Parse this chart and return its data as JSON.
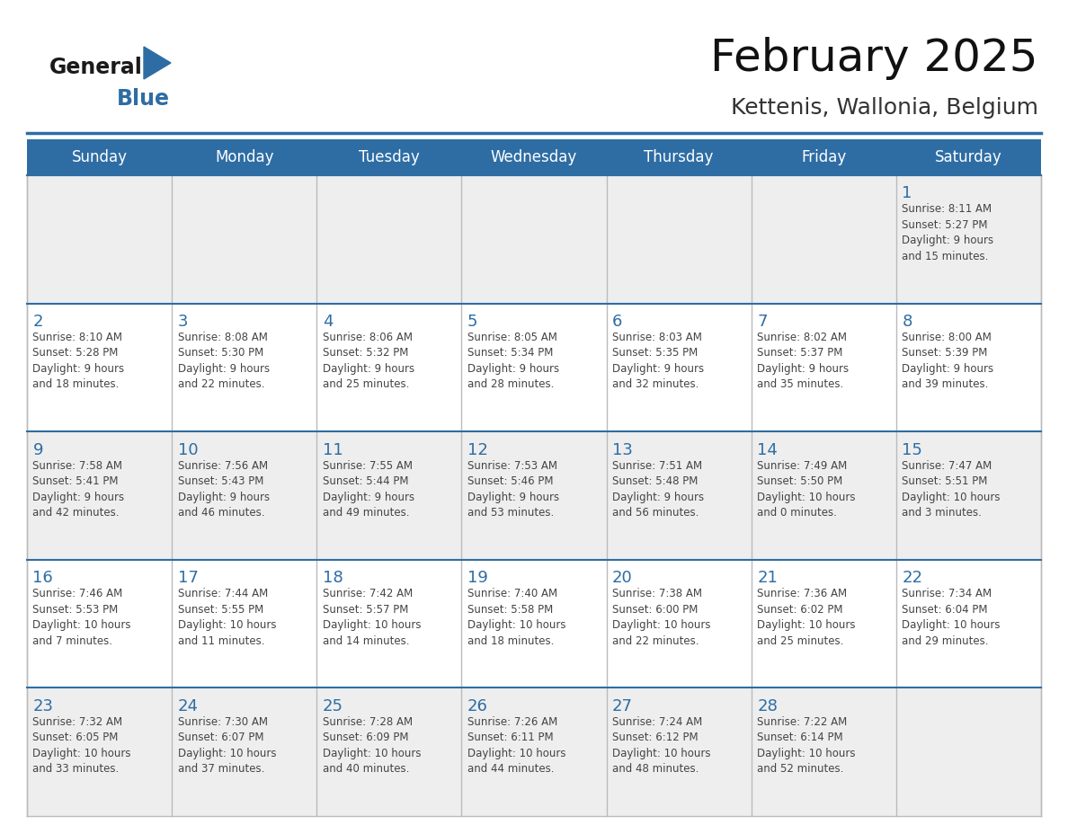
{
  "title": "February 2025",
  "subtitle": "Kettenis, Wallonia, Belgium",
  "header_bg": "#2E6DA4",
  "header_text": "#FFFFFF",
  "row1_bg": "#EEEEEE",
  "row_bg": "#FFFFFF",
  "day_number_color": "#2E6DA4",
  "detail_text_color": "#444444",
  "border_color": "#2E6DA4",
  "grid_line_color": "#BBBBBB",
  "days_of_week": [
    "Sunday",
    "Monday",
    "Tuesday",
    "Wednesday",
    "Thursday",
    "Friday",
    "Saturday"
  ],
  "weeks": [
    [
      {
        "day": null,
        "info": null
      },
      {
        "day": null,
        "info": null
      },
      {
        "day": null,
        "info": null
      },
      {
        "day": null,
        "info": null
      },
      {
        "day": null,
        "info": null
      },
      {
        "day": null,
        "info": null
      },
      {
        "day": 1,
        "info": "Sunrise: 8:11 AM\nSunset: 5:27 PM\nDaylight: 9 hours\nand 15 minutes."
      }
    ],
    [
      {
        "day": 2,
        "info": "Sunrise: 8:10 AM\nSunset: 5:28 PM\nDaylight: 9 hours\nand 18 minutes."
      },
      {
        "day": 3,
        "info": "Sunrise: 8:08 AM\nSunset: 5:30 PM\nDaylight: 9 hours\nand 22 minutes."
      },
      {
        "day": 4,
        "info": "Sunrise: 8:06 AM\nSunset: 5:32 PM\nDaylight: 9 hours\nand 25 minutes."
      },
      {
        "day": 5,
        "info": "Sunrise: 8:05 AM\nSunset: 5:34 PM\nDaylight: 9 hours\nand 28 minutes."
      },
      {
        "day": 6,
        "info": "Sunrise: 8:03 AM\nSunset: 5:35 PM\nDaylight: 9 hours\nand 32 minutes."
      },
      {
        "day": 7,
        "info": "Sunrise: 8:02 AM\nSunset: 5:37 PM\nDaylight: 9 hours\nand 35 minutes."
      },
      {
        "day": 8,
        "info": "Sunrise: 8:00 AM\nSunset: 5:39 PM\nDaylight: 9 hours\nand 39 minutes."
      }
    ],
    [
      {
        "day": 9,
        "info": "Sunrise: 7:58 AM\nSunset: 5:41 PM\nDaylight: 9 hours\nand 42 minutes."
      },
      {
        "day": 10,
        "info": "Sunrise: 7:56 AM\nSunset: 5:43 PM\nDaylight: 9 hours\nand 46 minutes."
      },
      {
        "day": 11,
        "info": "Sunrise: 7:55 AM\nSunset: 5:44 PM\nDaylight: 9 hours\nand 49 minutes."
      },
      {
        "day": 12,
        "info": "Sunrise: 7:53 AM\nSunset: 5:46 PM\nDaylight: 9 hours\nand 53 minutes."
      },
      {
        "day": 13,
        "info": "Sunrise: 7:51 AM\nSunset: 5:48 PM\nDaylight: 9 hours\nand 56 minutes."
      },
      {
        "day": 14,
        "info": "Sunrise: 7:49 AM\nSunset: 5:50 PM\nDaylight: 10 hours\nand 0 minutes."
      },
      {
        "day": 15,
        "info": "Sunrise: 7:47 AM\nSunset: 5:51 PM\nDaylight: 10 hours\nand 3 minutes."
      }
    ],
    [
      {
        "day": 16,
        "info": "Sunrise: 7:46 AM\nSunset: 5:53 PM\nDaylight: 10 hours\nand 7 minutes."
      },
      {
        "day": 17,
        "info": "Sunrise: 7:44 AM\nSunset: 5:55 PM\nDaylight: 10 hours\nand 11 minutes."
      },
      {
        "day": 18,
        "info": "Sunrise: 7:42 AM\nSunset: 5:57 PM\nDaylight: 10 hours\nand 14 minutes."
      },
      {
        "day": 19,
        "info": "Sunrise: 7:40 AM\nSunset: 5:58 PM\nDaylight: 10 hours\nand 18 minutes."
      },
      {
        "day": 20,
        "info": "Sunrise: 7:38 AM\nSunset: 6:00 PM\nDaylight: 10 hours\nand 22 minutes."
      },
      {
        "day": 21,
        "info": "Sunrise: 7:36 AM\nSunset: 6:02 PM\nDaylight: 10 hours\nand 25 minutes."
      },
      {
        "day": 22,
        "info": "Sunrise: 7:34 AM\nSunset: 6:04 PM\nDaylight: 10 hours\nand 29 minutes."
      }
    ],
    [
      {
        "day": 23,
        "info": "Sunrise: 7:32 AM\nSunset: 6:05 PM\nDaylight: 10 hours\nand 33 minutes."
      },
      {
        "day": 24,
        "info": "Sunrise: 7:30 AM\nSunset: 6:07 PM\nDaylight: 10 hours\nand 37 minutes."
      },
      {
        "day": 25,
        "info": "Sunrise: 7:28 AM\nSunset: 6:09 PM\nDaylight: 10 hours\nand 40 minutes."
      },
      {
        "day": 26,
        "info": "Sunrise: 7:26 AM\nSunset: 6:11 PM\nDaylight: 10 hours\nand 44 minutes."
      },
      {
        "day": 27,
        "info": "Sunrise: 7:24 AM\nSunset: 6:12 PM\nDaylight: 10 hours\nand 48 minutes."
      },
      {
        "day": 28,
        "info": "Sunrise: 7:22 AM\nSunset: 6:14 PM\nDaylight: 10 hours\nand 52 minutes."
      },
      {
        "day": null,
        "info": null
      }
    ]
  ],
  "logo_general_color": "#1a1a1a",
  "logo_blue_color": "#2E6DA4",
  "figsize": [
    11.88,
    9.18
  ],
  "dpi": 100
}
